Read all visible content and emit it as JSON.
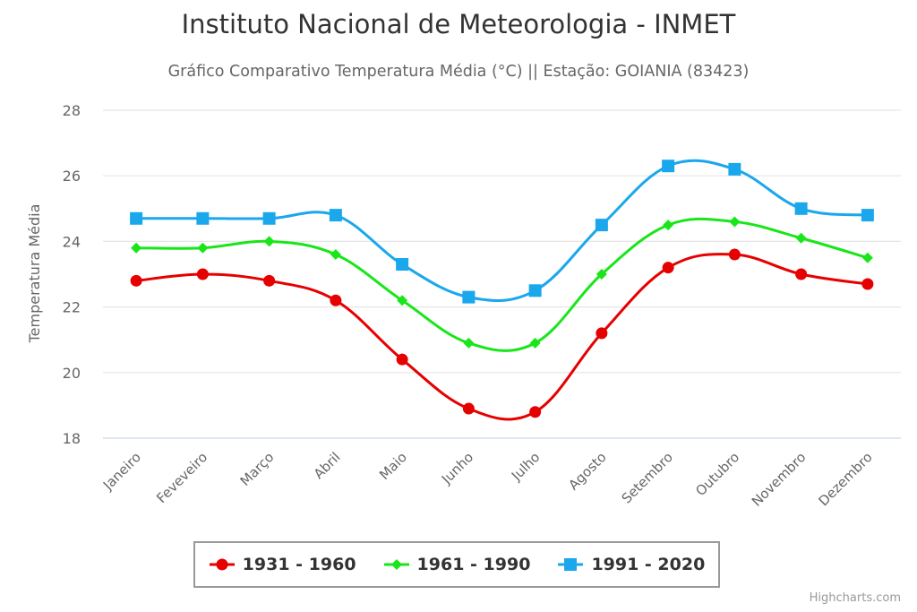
{
  "chart_data": {
    "type": "line",
    "title": "Instituto Nacional de Meteorologia - INMET",
    "subtitle": "Gráfico Comparativo Temperatura Média (°C) || Estação: GOIANIA (83423)",
    "xlabel": "",
    "ylabel": "Temperatura Média",
    "ylim": [
      18,
      28
    ],
    "yticks": [
      18,
      20,
      22,
      24,
      26,
      28
    ],
    "grid": true,
    "legend_position": "bottom",
    "categories": [
      "Janeiro",
      "Feveveiro",
      "Março",
      "Abril",
      "Maio",
      "Junho",
      "Julho",
      "Agosto",
      "Setembro",
      "Outubro",
      "Novembro",
      "Dezembro"
    ],
    "series": [
      {
        "name": "1931 - 1960",
        "color": "#e60000",
        "marker": "circle",
        "values": [
          22.8,
          23.0,
          22.8,
          22.2,
          20.4,
          18.9,
          18.8,
          21.2,
          23.2,
          23.6,
          23.0,
          22.7
        ]
      },
      {
        "name": "1961 - 1990",
        "color": "#19e619",
        "marker": "diamond",
        "values": [
          23.8,
          23.8,
          24.0,
          23.6,
          22.2,
          20.9,
          20.9,
          23.0,
          24.5,
          24.6,
          24.1,
          23.5
        ]
      },
      {
        "name": "1991 - 2020",
        "color": "#1aa7ec",
        "marker": "square",
        "values": [
          24.7,
          24.7,
          24.7,
          24.8,
          23.3,
          22.3,
          22.5,
          24.5,
          26.3,
          26.2,
          25.0,
          24.8
        ]
      }
    ],
    "credits": "Highcharts.com"
  }
}
